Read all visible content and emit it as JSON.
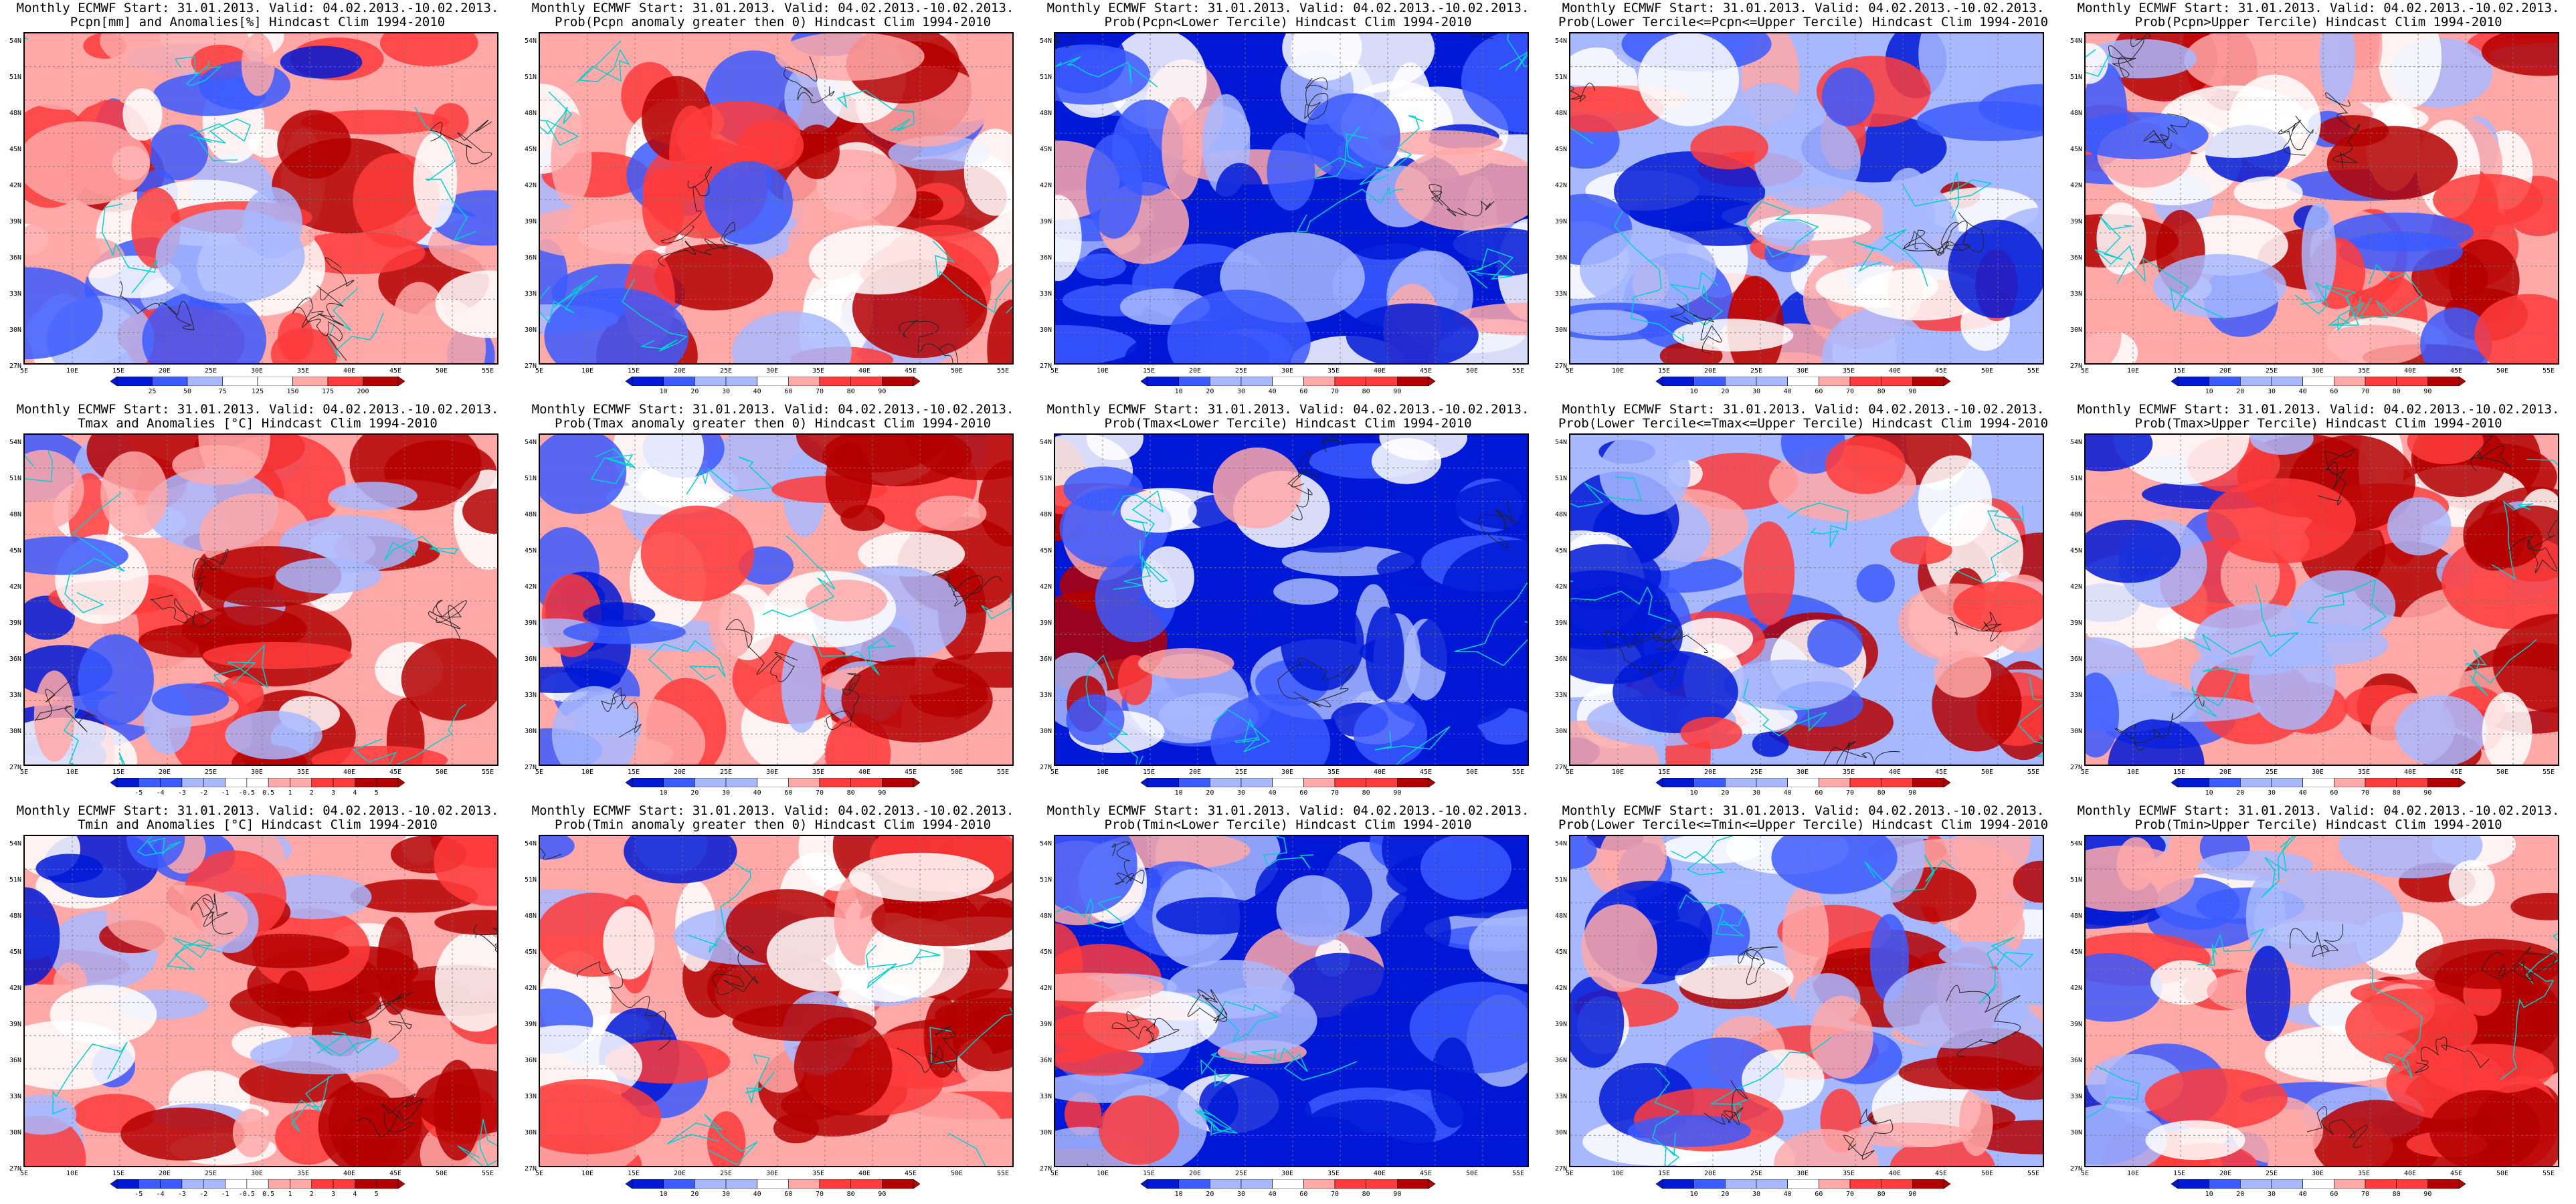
{
  "model": "Monthly ECMWF",
  "start": "31.01.2013.",
  "valid": "04.02.2013.-10.02.2013.",
  "clim": "Hindcast Clim 1994-2010",
  "lat_labels": [
    "54N",
    "51N",
    "48N",
    "45N",
    "42N",
    "39N",
    "36N",
    "33N",
    "30N",
    "27N"
  ],
  "lon_labels": [
    "5E",
    "10E",
    "15E",
    "20E",
    "25E",
    "30E",
    "35E",
    "40E",
    "45E",
    "50E",
    "55E"
  ],
  "colors": {
    "blue_dark": "#0019d6",
    "blue": "#3b5bff",
    "blue_light": "#a8b8ff",
    "white": "#ffffff",
    "red_light": "#ffa8a8",
    "red": "#ff3b3b",
    "red_dark": "#b40000",
    "coast": "#00d2d2"
  },
  "panels": [
    {
      "id": "pcpn-anom",
      "line1": "Monthly ECMWF Start: 31.01.2013. Valid: 04.02.2013.-10.02.2013.",
      "line2": "Pcpn[mm] and Anomalies[%] Hindcast Clim 1994-2010",
      "cbar": [
        "25",
        "50",
        "75",
        "125",
        "150",
        "175",
        "200"
      ],
      "bias": 0.15
    },
    {
      "id": "pcpn-prob-pos",
      "line1": "Monthly ECMWF Start: 31.01.2013. Valid: 04.02.2013.-10.02.2013.",
      "line2": "Prob(Pcpn anomaly greater then 0) Hindcast Clim 1994-2010",
      "cbar": [
        "10",
        "20",
        "30",
        "40",
        "60",
        "70",
        "80",
        "90"
      ],
      "bias": 0.2
    },
    {
      "id": "pcpn-lower",
      "line1": "Monthly ECMWF Start: 31.01.2013. Valid: 04.02.2013.-10.02.2013.",
      "line2": "Prob(Pcpn<Lower Tercile) Hindcast Clim 1994-2010",
      "cbar": [
        "10",
        "20",
        "30",
        "40",
        "60",
        "70",
        "80",
        "90"
      ],
      "bias": -0.55
    },
    {
      "id": "pcpn-middle",
      "line1": "Monthly ECMWF Start: 31.01.2013. Valid: 04.02.2013.-10.02.2013.",
      "line2": "Prob(Lower Tercile<=Pcpn<=Upper Tercile) Hindcast Clim 1994-2010",
      "cbar": [
        "10",
        "20",
        "30",
        "40",
        "60",
        "70",
        "80",
        "90"
      ],
      "bias": -0.1
    },
    {
      "id": "pcpn-upper",
      "line1": "Monthly ECMWF Start: 31.01.2013. Valid: 04.02.2013.-10.02.2013.",
      "line2": "Prob(Pcpn>Upper Tercile) Hindcast Clim 1994-2010",
      "cbar": [
        "10",
        "20",
        "30",
        "40",
        "60",
        "70",
        "80",
        "90"
      ],
      "bias": 0.1
    },
    {
      "id": "tmax-anom",
      "line1": "Monthly ECMWF Start: 31.01.2013. Valid: 04.02.2013.-10.02.2013.",
      "line2": "Tmax and Anomalies [°C] Hindcast Clim 1994-2010",
      "cbar": [
        "-5",
        "-4",
        "-3",
        "-2",
        "-1",
        "-0.5",
        "0.5",
        "1",
        "2",
        "3",
        "4",
        "5"
      ],
      "bias": 0.2
    },
    {
      "id": "tmax-prob-pos",
      "line1": "Monthly ECMWF Start: 31.01.2013. Valid: 04.02.2013.-10.02.2013.",
      "line2": "Prob(Tmax anomaly greater then 0) Hindcast Clim 1994-2010",
      "cbar": [
        "10",
        "20",
        "30",
        "40",
        "60",
        "70",
        "80",
        "90"
      ],
      "bias": 0.15
    },
    {
      "id": "tmax-lower",
      "line1": "Monthly ECMWF Start: 31.01.2013. Valid: 04.02.2013.-10.02.2013.",
      "line2": "Prob(Tmax<Lower Tercile) Hindcast Clim 1994-2010",
      "cbar": [
        "10",
        "20",
        "30",
        "40",
        "60",
        "70",
        "80",
        "90"
      ],
      "bias": -0.45
    },
    {
      "id": "tmax-middle",
      "line1": "Monthly ECMWF Start: 31.01.2013. Valid: 04.02.2013.-10.02.2013.",
      "line2": "Prob(Lower Tercile<=Tmax<=Upper Tercile) Hindcast Clim 1994-2010",
      "cbar": [
        "10",
        "20",
        "30",
        "40",
        "60",
        "70",
        "80",
        "90"
      ],
      "bias": -0.05
    },
    {
      "id": "tmax-upper",
      "line1": "Monthly ECMWF Start: 31.01.2013. Valid: 04.02.2013.-10.02.2013.",
      "line2": "Prob(Tmax>Upper Tercile) Hindcast Clim 1994-2010",
      "cbar": [
        "10",
        "20",
        "30",
        "40",
        "60",
        "70",
        "80",
        "90"
      ],
      "bias": 0.05
    },
    {
      "id": "tmin-anom",
      "line1": "Monthly ECMWF Start: 31.01.2013. Valid: 04.02.2013.-10.02.2013.",
      "line2": "Tmin and Anomalies [°C] Hindcast Clim 1994-2010",
      "cbar": [
        "-5",
        "-4",
        "-3",
        "-2",
        "-1",
        "-0.5",
        "0.5",
        "1",
        "2",
        "3",
        "4",
        "5"
      ],
      "bias": 0.25
    },
    {
      "id": "tmin-prob-pos",
      "line1": "Monthly ECMWF Start: 31.01.2013. Valid: 04.02.2013.-10.02.2013.",
      "line2": "Prob(Tmin anomaly greater then 0) Hindcast Clim 1994-2010",
      "cbar": [
        "10",
        "20",
        "30",
        "40",
        "60",
        "70",
        "80",
        "90"
      ],
      "bias": 0.2
    },
    {
      "id": "tmin-lower",
      "line1": "Monthly ECMWF Start: 31.01.2013. Valid: 04.02.2013.-10.02.2013.",
      "line2": "Prob(Tmin<Lower Tercile) Hindcast Clim 1994-2010",
      "cbar": [
        "10",
        "20",
        "30",
        "40",
        "60",
        "70",
        "80",
        "90"
      ],
      "bias": -0.45
    },
    {
      "id": "tmin-middle",
      "line1": "Monthly ECMWF Start: 31.01.2013. Valid: 04.02.2013.-10.02.2013.",
      "line2": "Prob(Lower Tercile<=Tmin<=Upper Tercile) Hindcast Clim 1994-2010",
      "cbar": [
        "10",
        "20",
        "30",
        "40",
        "60",
        "70",
        "80",
        "90"
      ],
      "bias": -0.05
    },
    {
      "id": "tmin-upper",
      "line1": "Monthly ECMWF Start: 31.01.2013. Valid: 04.02.2013.-10.02.2013.",
      "line2": "Prob(Tmin>Upper Tercile) Hindcast Clim 1994-2010",
      "cbar": [
        "10",
        "20",
        "30",
        "40",
        "60",
        "70",
        "80",
        "90"
      ],
      "bias": 0.1
    }
  ]
}
